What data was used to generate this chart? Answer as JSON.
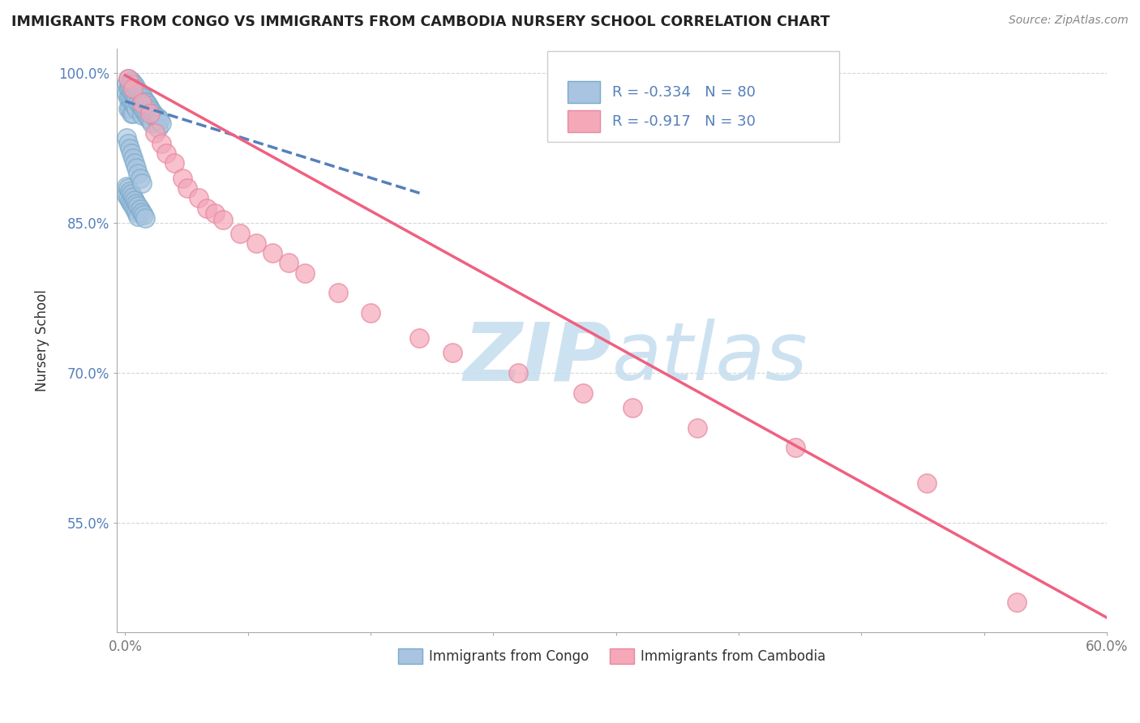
{
  "title": "IMMIGRANTS FROM CONGO VS IMMIGRANTS FROM CAMBODIA NURSERY SCHOOL CORRELATION CHART",
  "source": "Source: ZipAtlas.com",
  "ylabel": "Nursery School",
  "xlim": [
    -0.005,
    0.6
  ],
  "ylim": [
    0.44,
    1.025
  ],
  "xtick_positions": [
    0.0,
    0.075,
    0.15,
    0.225,
    0.3,
    0.375,
    0.45,
    0.525,
    0.6
  ],
  "xtick_labels_show": {
    "0.0": "0.0%",
    "0.60": "60.0%"
  },
  "ytick_positions": [
    0.55,
    0.7,
    0.85,
    1.0
  ],
  "ytick_labels": [
    "55.0%",
    "70.0%",
    "85.0%",
    "100.0%"
  ],
  "legend_line1": "R = -0.334   N = 80",
  "legend_line2": "R = -0.917   N = 30",
  "legend_label1": "Immigrants from Congo",
  "legend_label2": "Immigrants from Cambodia",
  "congo_color": "#a8c4e0",
  "congo_edge_color": "#7aaac8",
  "cambodia_color": "#f4a8b8",
  "cambodia_edge_color": "#e888a0",
  "congo_line_color": "#5580bb",
  "cambodia_line_color": "#f06080",
  "watermark_text": "ZIPatlas",
  "watermark_color": "#c8dff0",
  "background_color": "#ffffff",
  "grid_color": "#cccccc",
  "title_color": "#222222",
  "axis_label_color": "#333333",
  "ytick_color": "#5580bb",
  "xtick_color": "#777777",
  "legend_text_color": "#5580bb",
  "title_fontsize": 12.5,
  "congo_scatter_x": [
    0.001,
    0.001,
    0.002,
    0.002,
    0.002,
    0.002,
    0.003,
    0.003,
    0.003,
    0.003,
    0.004,
    0.004,
    0.004,
    0.004,
    0.005,
    0.005,
    0.005,
    0.005,
    0.006,
    0.006,
    0.006,
    0.007,
    0.007,
    0.007,
    0.008,
    0.008,
    0.009,
    0.009,
    0.01,
    0.01,
    0.01,
    0.011,
    0.011,
    0.012,
    0.012,
    0.013,
    0.013,
    0.014,
    0.014,
    0.015,
    0.015,
    0.016,
    0.016,
    0.017,
    0.018,
    0.019,
    0.02,
    0.02,
    0.021,
    0.022,
    0.001,
    0.001,
    0.002,
    0.002,
    0.003,
    0.003,
    0.004,
    0.004,
    0.005,
    0.005,
    0.006,
    0.006,
    0.007,
    0.007,
    0.008,
    0.008,
    0.009,
    0.01,
    0.011,
    0.012,
    0.001,
    0.002,
    0.003,
    0.004,
    0.005,
    0.006,
    0.007,
    0.008,
    0.009,
    0.01
  ],
  "congo_scatter_y": [
    0.99,
    0.98,
    0.995,
    0.985,
    0.975,
    0.965,
    0.99,
    0.985,
    0.975,
    0.965,
    0.992,
    0.982,
    0.972,
    0.96,
    0.99,
    0.98,
    0.97,
    0.96,
    0.988,
    0.978,
    0.968,
    0.985,
    0.975,
    0.965,
    0.982,
    0.97,
    0.98,
    0.968,
    0.978,
    0.967,
    0.958,
    0.975,
    0.963,
    0.972,
    0.961,
    0.97,
    0.958,
    0.968,
    0.955,
    0.965,
    0.953,
    0.962,
    0.95,
    0.96,
    0.957,
    0.954,
    0.956,
    0.945,
    0.953,
    0.95,
    0.887,
    0.878,
    0.885,
    0.875,
    0.882,
    0.872,
    0.879,
    0.87,
    0.876,
    0.867,
    0.873,
    0.864,
    0.87,
    0.861,
    0.867,
    0.857,
    0.864,
    0.861,
    0.858,
    0.855,
    0.935,
    0.93,
    0.925,
    0.92,
    0.915,
    0.91,
    0.905,
    0.9,
    0.895,
    0.89
  ],
  "cambodia_scatter_x": [
    0.002,
    0.005,
    0.01,
    0.015,
    0.018,
    0.022,
    0.025,
    0.03,
    0.035,
    0.038,
    0.045,
    0.05,
    0.055,
    0.06,
    0.07,
    0.08,
    0.09,
    0.1,
    0.11,
    0.13,
    0.15,
    0.18,
    0.2,
    0.24,
    0.28,
    0.31,
    0.35,
    0.41,
    0.49,
    0.545
  ],
  "cambodia_scatter_y": [
    0.995,
    0.985,
    0.97,
    0.96,
    0.94,
    0.93,
    0.92,
    0.91,
    0.895,
    0.885,
    0.875,
    0.865,
    0.86,
    0.853,
    0.84,
    0.83,
    0.82,
    0.81,
    0.8,
    0.78,
    0.76,
    0.735,
    0.72,
    0.7,
    0.68,
    0.665,
    0.645,
    0.625,
    0.59,
    0.47
  ],
  "congo_trend_x": [
    0.0,
    0.18
  ],
  "congo_trend_y": [
    0.972,
    0.88
  ],
  "cambodia_trend_x": [
    0.0,
    0.6
  ],
  "cambodia_trend_y": [
    0.998,
    0.455
  ]
}
